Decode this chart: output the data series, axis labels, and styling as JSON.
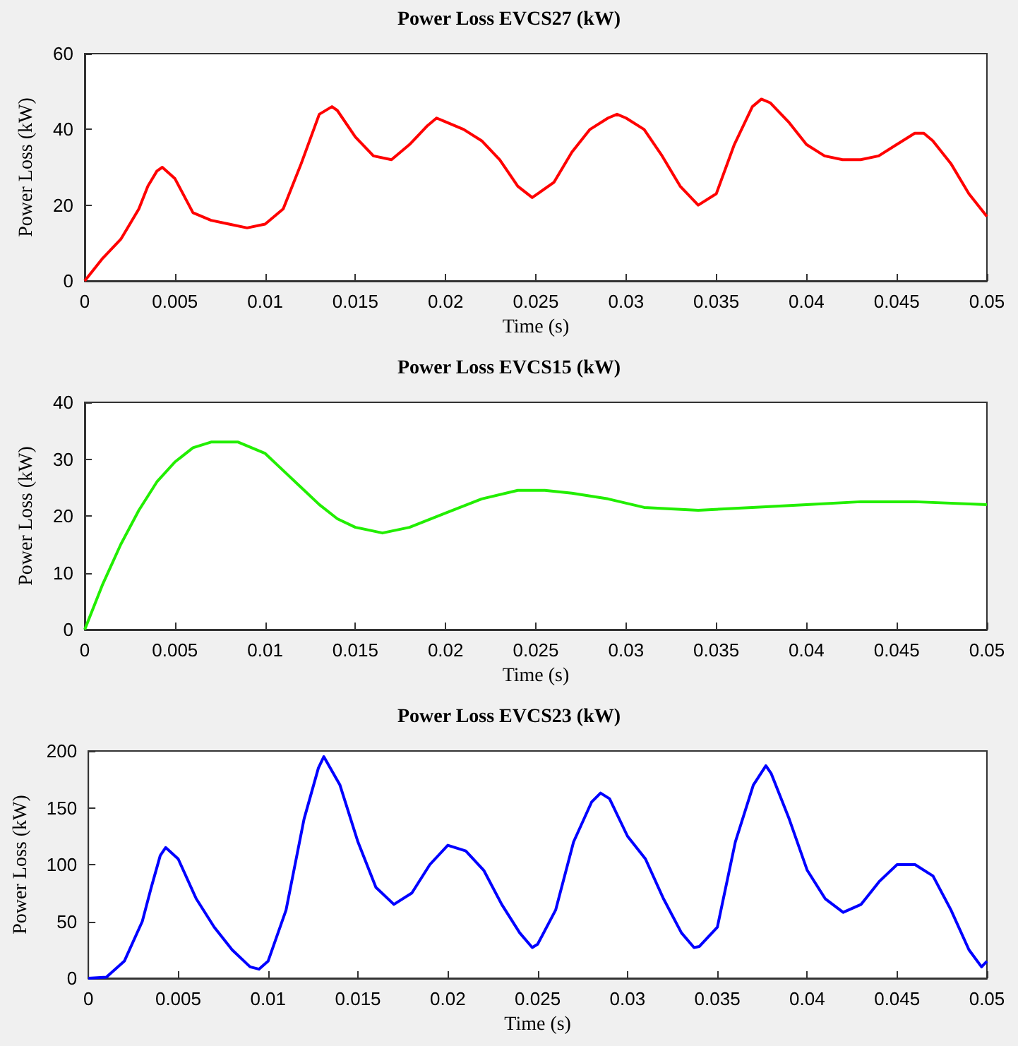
{
  "chart_data": [
    {
      "type": "line",
      "title": "Power Loss EVCS27 (kW)",
      "xlabel": "Time (s)",
      "ylabel": "Power Loss (kW)",
      "xlim": [
        0,
        0.05
      ],
      "ylim": [
        0,
        60
      ],
      "xticks": [
        0,
        0.005,
        0.01,
        0.015,
        0.02,
        0.025,
        0.03,
        0.035,
        0.04,
        0.045,
        0.05
      ],
      "yticks": [
        0,
        20,
        40,
        60
      ],
      "x": [
        0,
        0.001,
        0.002,
        0.003,
        0.0035,
        0.004,
        0.0043,
        0.005,
        0.006,
        0.007,
        0.008,
        0.009,
        0.01,
        0.011,
        0.012,
        0.013,
        0.0137,
        0.014,
        0.015,
        0.016,
        0.017,
        0.018,
        0.019,
        0.0195,
        0.02,
        0.021,
        0.022,
        0.023,
        0.024,
        0.0248,
        0.026,
        0.027,
        0.028,
        0.029,
        0.0295,
        0.03,
        0.031,
        0.032,
        0.033,
        0.034,
        0.035,
        0.036,
        0.037,
        0.0375,
        0.038,
        0.039,
        0.04,
        0.041,
        0.042,
        0.043,
        0.044,
        0.045,
        0.046,
        0.0465,
        0.047,
        0.048,
        0.049,
        0.05
      ],
      "series": [
        {
          "color": "#ff0000",
          "values": [
            0,
            6,
            11,
            19,
            25,
            29,
            30,
            27,
            18,
            16,
            15,
            14,
            15,
            19,
            31,
            44,
            46,
            45,
            38,
            33,
            32,
            36,
            41,
            43,
            42,
            40,
            37,
            32,
            25,
            22,
            26,
            34,
            40,
            43,
            44,
            43,
            40,
            33,
            25,
            20,
            23,
            36,
            46,
            48,
            47,
            42,
            36,
            33,
            32,
            32,
            33,
            36,
            39,
            39,
            37,
            31,
            23,
            17
          ]
        }
      ]
    },
    {
      "type": "line",
      "title": "Power Loss EVCS15 (kW)",
      "xlabel": "Time (s)",
      "ylabel": "Power Loss (kW)",
      "xlim": [
        0,
        0.05
      ],
      "ylim": [
        0,
        40
      ],
      "xticks": [
        0,
        0.005,
        0.01,
        0.015,
        0.02,
        0.025,
        0.03,
        0.035,
        0.04,
        0.045,
        0.05
      ],
      "yticks": [
        0,
        10,
        20,
        30,
        40
      ],
      "x": [
        0,
        0.001,
        0.002,
        0.003,
        0.004,
        0.005,
        0.006,
        0.007,
        0.0085,
        0.01,
        0.011,
        0.012,
        0.013,
        0.014,
        0.015,
        0.0165,
        0.018,
        0.02,
        0.022,
        0.024,
        0.0255,
        0.027,
        0.029,
        0.031,
        0.034,
        0.037,
        0.04,
        0.043,
        0.046,
        0.05
      ],
      "series": [
        {
          "color": "#22ee00",
          "values": [
            0,
            8,
            15,
            21,
            26,
            29.5,
            32,
            33,
            33,
            31,
            28,
            25,
            22,
            19.5,
            18,
            17,
            18,
            20.5,
            23,
            24.5,
            24.5,
            24,
            23,
            21.5,
            21,
            21.5,
            22,
            22.5,
            22.5,
            22
          ]
        }
      ]
    },
    {
      "type": "line",
      "title": "Power Loss EVCS23 (kW)",
      "xlabel": "Time (s)",
      "ylabel": "Power Loss (kW)",
      "xlim": [
        0,
        0.05
      ],
      "ylim": [
        0,
        200
      ],
      "xticks": [
        0,
        0.005,
        0.01,
        0.015,
        0.02,
        0.025,
        0.03,
        0.035,
        0.04,
        0.045,
        0.05
      ],
      "yticks": [
        0,
        50,
        100,
        150,
        200
      ],
      "x": [
        0,
        0.001,
        0.002,
        0.003,
        0.0035,
        0.004,
        0.0043,
        0.005,
        0.006,
        0.007,
        0.008,
        0.009,
        0.0095,
        0.01,
        0.011,
        0.012,
        0.0128,
        0.0131,
        0.014,
        0.015,
        0.016,
        0.017,
        0.018,
        0.019,
        0.02,
        0.021,
        0.022,
        0.023,
        0.024,
        0.0247,
        0.025,
        0.026,
        0.027,
        0.028,
        0.0285,
        0.029,
        0.03,
        0.031,
        0.032,
        0.033,
        0.0337,
        0.034,
        0.035,
        0.036,
        0.037,
        0.0377,
        0.038,
        0.039,
        0.04,
        0.041,
        0.042,
        0.043,
        0.044,
        0.045,
        0.046,
        0.047,
        0.048,
        0.049,
        0.0497,
        0.05
      ],
      "series": [
        {
          "color": "#0000ff",
          "values": [
            0,
            1,
            15,
            50,
            80,
            108,
            115,
            105,
            70,
            45,
            25,
            10,
            8,
            15,
            60,
            140,
            185,
            195,
            170,
            120,
            80,
            65,
            75,
            100,
            117,
            112,
            95,
            65,
            40,
            27,
            30,
            60,
            120,
            155,
            163,
            158,
            125,
            105,
            70,
            40,
            27,
            28,
            45,
            120,
            170,
            187,
            180,
            140,
            95,
            70,
            58,
            65,
            85,
            100,
            100,
            90,
            60,
            25,
            10,
            15
          ]
        }
      ]
    }
  ]
}
